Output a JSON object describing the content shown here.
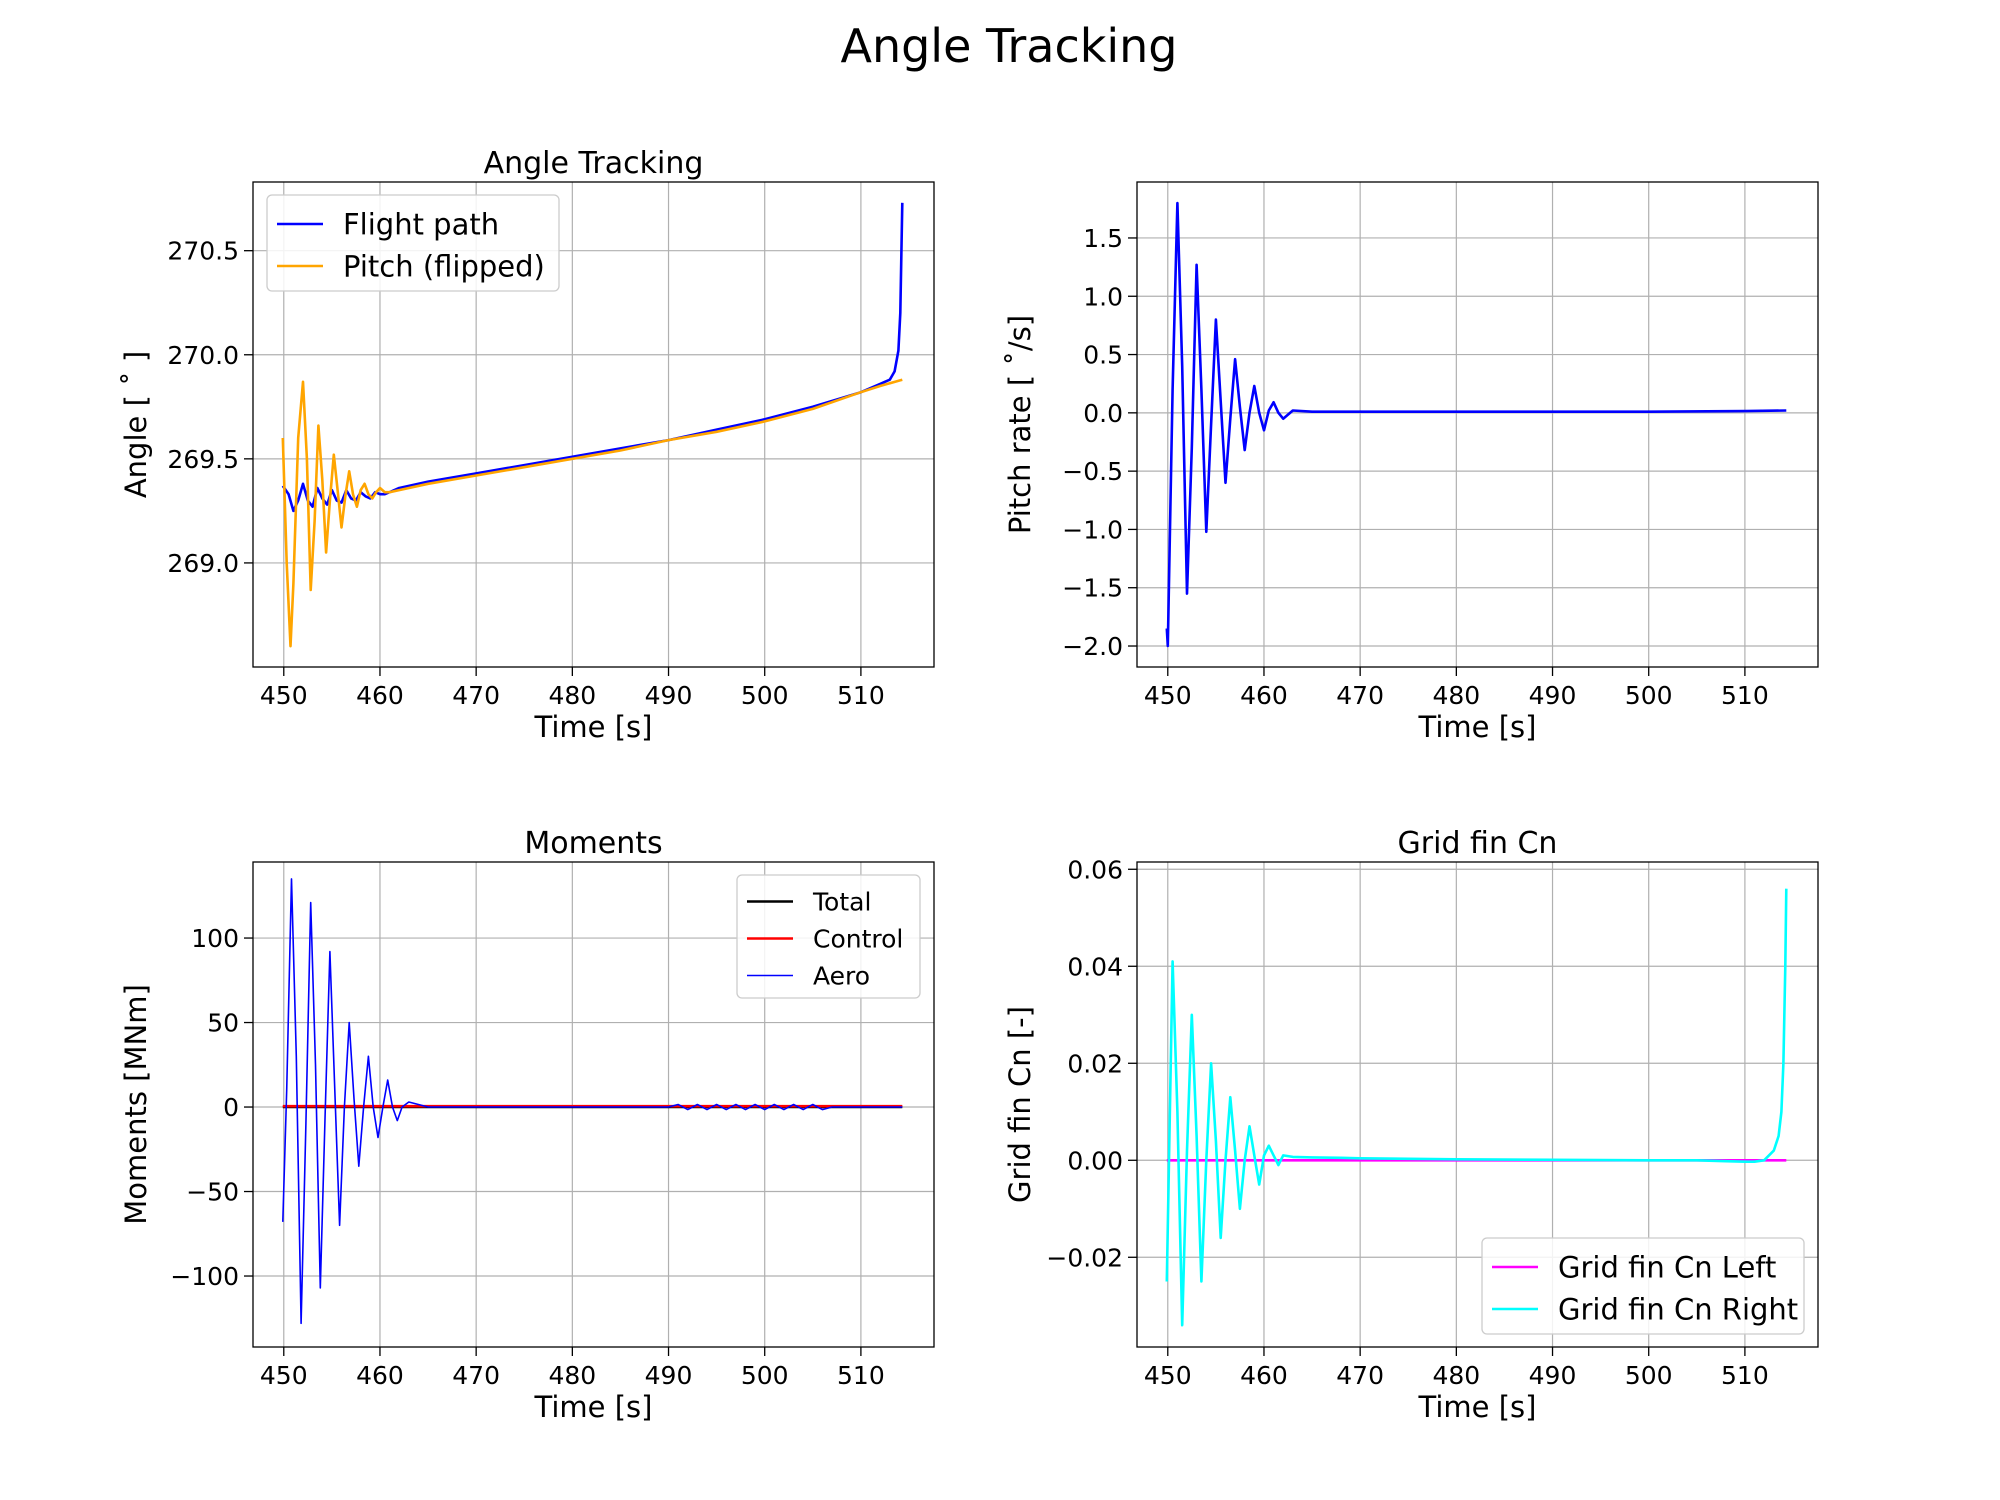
{
  "figure": {
    "title": "Angle Tracking"
  },
  "chart_data": [
    {
      "type": "line",
      "title": "Angle Tracking",
      "xlabel": "Time [s]",
      "ylabel": "Angle [ ˚ ]",
      "xlim": [
        446.8,
        517.6
      ],
      "ylim": [
        268.5,
        270.83
      ],
      "xticks": [
        450,
        460,
        470,
        480,
        490,
        500,
        510
      ],
      "yticks": [
        269.0,
        269.5,
        270.0,
        270.5
      ],
      "ytick_format": 1,
      "grid": true,
      "legend": "top-left",
      "series": [
        {
          "name": "Flight path",
          "color": "#0000ff",
          "width": 2.6,
          "x": [
            449.9,
            450.5,
            451,
            451.5,
            452,
            452.5,
            453,
            453.5,
            454,
            454.5,
            455,
            455.5,
            456,
            456.5,
            457,
            457.5,
            458,
            458.5,
            459,
            459.5,
            460,
            460.5,
            461,
            462,
            465,
            470,
            475,
            480,
            485,
            490,
            495,
            500,
            505,
            510,
            512,
            513,
            513.5,
            513.9,
            514.1,
            514.3
          ],
          "y": [
            269.37,
            269.33,
            269.25,
            269.3,
            269.38,
            269.3,
            269.27,
            269.36,
            269.31,
            269.28,
            269.35,
            269.3,
            269.29,
            269.35,
            269.31,
            269.3,
            269.34,
            269.32,
            269.31,
            269.34,
            269.33,
            269.33,
            269.34,
            269.36,
            269.39,
            269.43,
            269.47,
            269.51,
            269.55,
            269.59,
            269.64,
            269.69,
            269.75,
            269.82,
            269.86,
            269.88,
            269.92,
            270.02,
            270.2,
            270.73
          ]
        },
        {
          "name": "Pitch (flipped)",
          "color": "#ffa500",
          "width": 2.6,
          "x": [
            449.9,
            450.3,
            450.7,
            451,
            451.5,
            452,
            452.4,
            452.8,
            453.2,
            453.6,
            454,
            454.4,
            454.8,
            455.2,
            455.6,
            456,
            456.4,
            456.8,
            457.2,
            457.6,
            458,
            458.4,
            458.8,
            459.2,
            459.6,
            460,
            460.5,
            461,
            462,
            465,
            470,
            475,
            480,
            485,
            490,
            495,
            500,
            505,
            510,
            512,
            514.3
          ],
          "y": [
            269.6,
            269.0,
            268.6,
            268.9,
            269.6,
            269.87,
            269.5,
            268.87,
            269.2,
            269.66,
            269.4,
            269.05,
            269.3,
            269.52,
            269.35,
            269.17,
            269.32,
            269.44,
            269.33,
            269.27,
            269.35,
            269.38,
            269.33,
            269.31,
            269.34,
            269.36,
            269.34,
            269.34,
            269.35,
            269.38,
            269.42,
            269.46,
            269.5,
            269.54,
            269.59,
            269.63,
            269.68,
            269.74,
            269.82,
            269.85,
            269.88
          ]
        }
      ]
    },
    {
      "type": "line",
      "title": "",
      "xlabel": "Time [s]",
      "ylabel": "Pitch rate [ ˚/s]",
      "xlim": [
        446.8,
        517.6
      ],
      "ylim": [
        -2.18,
        1.98
      ],
      "xticks": [
        450,
        460,
        470,
        480,
        490,
        500,
        510
      ],
      "yticks": [
        -2.0,
        -1.5,
        -1.0,
        -0.5,
        0.0,
        0.5,
        1.0,
        1.5
      ],
      "ytick_format": 1,
      "grid": true,
      "legend": "none",
      "series": [
        {
          "color": "#0000ff",
          "width": 2.6,
          "x": [
            449.9,
            450,
            450.5,
            451,
            451.5,
            452,
            452.5,
            453,
            453.5,
            454,
            454.5,
            455,
            455.5,
            456,
            456.5,
            457,
            457.5,
            458,
            458.5,
            459,
            459.5,
            460,
            460.5,
            461,
            461.5,
            462,
            463,
            465,
            470,
            480,
            490,
            500,
            510,
            514.3
          ],
          "y": [
            -1.85,
            -2.0,
            0.2,
            1.8,
            0.4,
            -1.55,
            -0.3,
            1.27,
            0.2,
            -1.02,
            -0.1,
            0.8,
            0.1,
            -0.6,
            -0.05,
            0.46,
            0.05,
            -0.32,
            0.0,
            0.23,
            0.0,
            -0.15,
            0.02,
            0.09,
            0.0,
            -0.05,
            0.02,
            0.01,
            0.01,
            0.01,
            0.01,
            0.01,
            0.015,
            0.02
          ]
        }
      ]
    },
    {
      "type": "line",
      "title": "Moments",
      "xlabel": "Time [s]",
      "ylabel": "Moments [MNm]",
      "xlim": [
        446.8,
        517.6
      ],
      "ylim": [
        -142,
        145
      ],
      "xticks": [
        450,
        460,
        470,
        480,
        490,
        500,
        510
      ],
      "yticks": [
        -100,
        -50,
        0,
        50,
        100
      ],
      "ytick_format": 0,
      "grid": true,
      "legend": "top-right",
      "series": [
        {
          "name": "Total",
          "color": "#000000",
          "width": 2.6,
          "x": [
            449.9,
            514.3
          ],
          "y": [
            0,
            0
          ]
        },
        {
          "name": "Control",
          "color": "#ff0000",
          "width": 2.6,
          "x": [
            449.9,
            514.3
          ],
          "y": [
            0.5,
            0.5
          ]
        },
        {
          "name": "Aero",
          "color": "#0000ff",
          "width": 1.6,
          "x": [
            449.9,
            450.3,
            450.8,
            451.3,
            451.8,
            452.3,
            452.8,
            453.3,
            453.8,
            454.3,
            454.8,
            455.3,
            455.8,
            456.3,
            456.8,
            457.3,
            457.8,
            458.3,
            458.8,
            459.3,
            459.8,
            460.3,
            460.8,
            461.3,
            461.8,
            462.3,
            463,
            465,
            470,
            480,
            490,
            491,
            492,
            493,
            494,
            495,
            496,
            497,
            498,
            499,
            500,
            501,
            502,
            503,
            504,
            505,
            506,
            507,
            510,
            514.3
          ],
          "y": [
            -68,
            10,
            135,
            30,
            -128,
            -10,
            121,
            25,
            -107,
            -5,
            92,
            10,
            -70,
            0,
            50,
            5,
            -35,
            0,
            30,
            0,
            -18,
            0,
            16,
            0,
            -8,
            0,
            3,
            0,
            0,
            0,
            0,
            1.5,
            -1.5,
            1.5,
            -1.5,
            1.5,
            -1.5,
            1.5,
            -1.5,
            1.5,
            -1.5,
            1.5,
            -1.5,
            1.5,
            -1.5,
            1.5,
            -1.5,
            0,
            0,
            0
          ]
        }
      ]
    },
    {
      "type": "line",
      "title": "Grid fin Cn",
      "xlabel": "Time [s]",
      "ylabel": "Grid fin Cn [-]",
      "xlim": [
        446.8,
        517.6
      ],
      "ylim": [
        -0.0385,
        0.0615
      ],
      "xticks": [
        450,
        460,
        470,
        480,
        490,
        500,
        510
      ],
      "yticks": [
        -0.02,
        0.0,
        0.02,
        0.04,
        0.06
      ],
      "ytick_format": 2,
      "grid": true,
      "legend": "bottom-right",
      "series": [
        {
          "name": "Grid fin Cn Left",
          "color": "#ff00ff",
          "width": 2.6,
          "x": [
            449.9,
            514.3
          ],
          "y": [
            0.0,
            0.0
          ]
        },
        {
          "name": "Grid fin Cn Right",
          "color": "#00ffff",
          "width": 2.6,
          "x": [
            449.9,
            450.5,
            451,
            451.5,
            452,
            452.5,
            453,
            453.5,
            454,
            454.5,
            455,
            455.5,
            456,
            456.5,
            457,
            457.5,
            458,
            458.5,
            459,
            459.5,
            460,
            460.5,
            461,
            461.5,
            462,
            463,
            465,
            468,
            470,
            480,
            490,
            500,
            505,
            508,
            510,
            511,
            512,
            513,
            513.5,
            513.8,
            514,
            514.2,
            514.3
          ],
          "y": [
            -0.025,
            0.041,
            0.01,
            -0.034,
            0.002,
            0.03,
            0.005,
            -0.025,
            0.0,
            0.02,
            0.004,
            -0.016,
            0.0,
            0.013,
            0.002,
            -0.01,
            0.0,
            0.007,
            0.001,
            -0.005,
            0.001,
            0.003,
            0.001,
            -0.001,
            0.001,
            0.0007,
            0.0006,
            0.0005,
            0.0004,
            0.0002,
            0.0001,
            0.0,
            0.0,
            -0.0002,
            -0.0003,
            -0.0003,
            0.0,
            0.002,
            0.005,
            0.01,
            0.02,
            0.04,
            0.056
          ]
        }
      ]
    }
  ]
}
